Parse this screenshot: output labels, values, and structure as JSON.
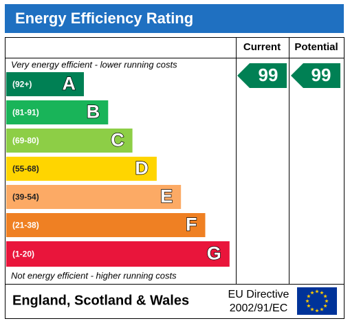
{
  "header": {
    "title": "Energy Efficiency Rating"
  },
  "columns": [
    "Current",
    "Potential"
  ],
  "top_note": "Very energy efficient - lower running costs",
  "bottom_note": "Not energy efficient - higher running costs",
  "bands": [
    {
      "range": "(92+)",
      "letter": "A",
      "color": "#008054"
    },
    {
      "range": "(81-91)",
      "letter": "B",
      "color": "#19b459"
    },
    {
      "range": "(69-80)",
      "letter": "C",
      "color": "#8dce46"
    },
    {
      "range": "(55-68)",
      "letter": "D",
      "color": "#ffd500"
    },
    {
      "range": "(39-54)",
      "letter": "E",
      "color": "#fcaa65"
    },
    {
      "range": "(21-38)",
      "letter": "F",
      "color": "#ef8023"
    },
    {
      "range": "(1-20)",
      "letter": "G",
      "color": "#e9153b"
    }
  ],
  "ratings": {
    "current": "99",
    "potential": "99"
  },
  "footer": {
    "region": "England, Scotland & Wales",
    "directive": [
      "EU Directive",
      "2002/91/EC"
    ]
  }
}
